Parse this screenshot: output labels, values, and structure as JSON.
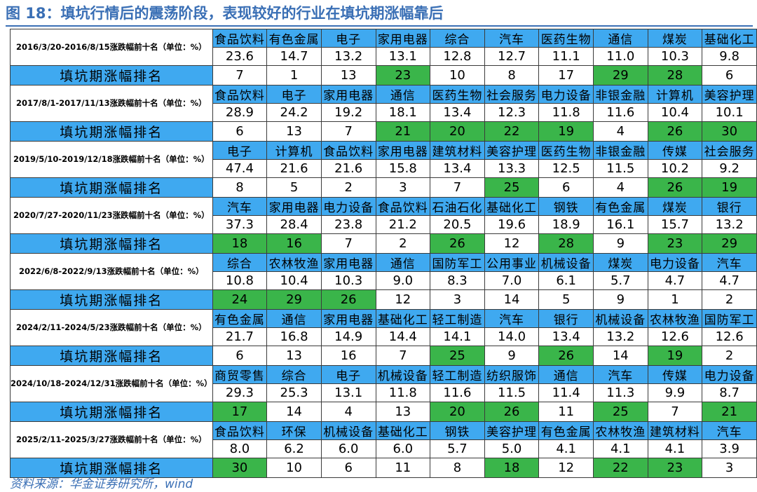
{
  "title": "图 18：填坑行情后的震荡阶段，表现较好的行业在填坑期涨幅靠后",
  "rank_label": "填坑期涨幅排名",
  "source": "资料来源：华金证券研究所，wind",
  "colors": {
    "header_blue": "#3fa9f0",
    "highlight_green": "#3ab54a",
    "title_blue": "#3a6fb5"
  },
  "periods": [
    {
      "label": "2016/3/20-2016/8/15涨跌幅前十名（单位：%）",
      "industries": [
        "食品饮料",
        "有色金属",
        "电子",
        "家用电器",
        "综合",
        "汽车",
        "医药生物",
        "通信",
        "煤炭",
        "基础化工"
      ],
      "values": [
        "23.6",
        "14.7",
        "13.2",
        "13.1",
        "12.8",
        "12.7",
        "11.1",
        "11.0",
        "10.3",
        "9.8"
      ],
      "ranks": [
        {
          "v": "7",
          "hi": false
        },
        {
          "v": "1",
          "hi": false
        },
        {
          "v": "13",
          "hi": false
        },
        {
          "v": "23",
          "hi": true
        },
        {
          "v": "10",
          "hi": false
        },
        {
          "v": "8",
          "hi": false
        },
        {
          "v": "17",
          "hi": false
        },
        {
          "v": "29",
          "hi": true
        },
        {
          "v": "28",
          "hi": true
        },
        {
          "v": "6",
          "hi": false
        }
      ]
    },
    {
      "label": "2017/8/1-2017/11/13涨跌幅前十名（单位：%）",
      "industries": [
        "食品饮料",
        "电子",
        "家用电器",
        "通信",
        "医药生物",
        "社会服务",
        "电力设备",
        "非银金融",
        "计算机",
        "美容护理"
      ],
      "values": [
        "28.9",
        "24.2",
        "19.2",
        "18.1",
        "13.4",
        "12.3",
        "11.8",
        "11.6",
        "10.4",
        "10.1"
      ],
      "ranks": [
        {
          "v": "6",
          "hi": false
        },
        {
          "v": "13",
          "hi": false
        },
        {
          "v": "7",
          "hi": false
        },
        {
          "v": "21",
          "hi": true
        },
        {
          "v": "20",
          "hi": true
        },
        {
          "v": "22",
          "hi": true
        },
        {
          "v": "19",
          "hi": true
        },
        {
          "v": "4",
          "hi": false
        },
        {
          "v": "26",
          "hi": true
        },
        {
          "v": "30",
          "hi": true
        }
      ]
    },
    {
      "label": "2019/5/10-2019/12/18涨跌幅前十名（单位：%）",
      "industries": [
        "电子",
        "计算机",
        "食品饮料",
        "家用电器",
        "建筑材料",
        "美容护理",
        "医药生物",
        "非银金融",
        "传媒",
        "社会服务"
      ],
      "values": [
        "47.4",
        "21.6",
        "21.6",
        "15.8",
        "13.4",
        "13.3",
        "12.5",
        "11.5",
        "10.2",
        "9.2"
      ],
      "ranks": [
        {
          "v": "8",
          "hi": false
        },
        {
          "v": "5",
          "hi": false
        },
        {
          "v": "2",
          "hi": false
        },
        {
          "v": "3",
          "hi": false
        },
        {
          "v": "7",
          "hi": false
        },
        {
          "v": "25",
          "hi": true
        },
        {
          "v": "6",
          "hi": false
        },
        {
          "v": "4",
          "hi": false
        },
        {
          "v": "26",
          "hi": true
        },
        {
          "v": "19",
          "hi": true
        }
      ]
    },
    {
      "label": "2020/7/27-2020/11/23涨跌幅前十名（单位：%）",
      "industries": [
        "汽车",
        "家用电器",
        "电力设备",
        "食品饮料",
        "石油石化",
        "基础化工",
        "钢铁",
        "有色金属",
        "煤炭",
        "银行"
      ],
      "values": [
        "37.3",
        "28.4",
        "23.8",
        "21.2",
        "20.5",
        "19.6",
        "18.9",
        "16.1",
        "15.7",
        "13.2"
      ],
      "ranks": [
        {
          "v": "18",
          "hi": true
        },
        {
          "v": "16",
          "hi": true
        },
        {
          "v": "7",
          "hi": false
        },
        {
          "v": "2",
          "hi": false
        },
        {
          "v": "26",
          "hi": true
        },
        {
          "v": "12",
          "hi": false
        },
        {
          "v": "28",
          "hi": true
        },
        {
          "v": "9",
          "hi": false
        },
        {
          "v": "23",
          "hi": true
        },
        {
          "v": "29",
          "hi": true
        }
      ]
    },
    {
      "label": "2022/6/8-2022/9/13涨跌幅前十名（单位：%）",
      "industries": [
        "综合",
        "农林牧渔",
        "家用电器",
        "通信",
        "国防军工",
        "公用事业",
        "机械设备",
        "煤炭",
        "电力设备",
        "汽车"
      ],
      "values": [
        "10.8",
        "10.4",
        "10.3",
        "9.0",
        "8.3",
        "7.0",
        "6.1",
        "5.7",
        "4.7",
        "4.7"
      ],
      "ranks": [
        {
          "v": "24",
          "hi": true
        },
        {
          "v": "29",
          "hi": true
        },
        {
          "v": "26",
          "hi": true
        },
        {
          "v": "12",
          "hi": false
        },
        {
          "v": "3",
          "hi": false
        },
        {
          "v": "14",
          "hi": false
        },
        {
          "v": "5",
          "hi": false
        },
        {
          "v": "9",
          "hi": false
        },
        {
          "v": "1",
          "hi": false
        },
        {
          "v": "2",
          "hi": false
        }
      ]
    },
    {
      "label": "2024/2/11-2024/5/23涨跌幅前十名（单位：%）",
      "industries": [
        "有色金属",
        "通信",
        "家用电器",
        "基础化工",
        "轻工制造",
        "汽车",
        "银行",
        "机械设备",
        "农林牧渔",
        "国防军工"
      ],
      "values": [
        "21.7",
        "16.8",
        "14.9",
        "14.4",
        "14.1",
        "14.0",
        "13.4",
        "13.2",
        "12.6",
        "12.6"
      ],
      "ranks": [
        {
          "v": "6",
          "hi": false
        },
        {
          "v": "13",
          "hi": false
        },
        {
          "v": "16",
          "hi": false
        },
        {
          "v": "7",
          "hi": false
        },
        {
          "v": "25",
          "hi": true
        },
        {
          "v": "9",
          "hi": false
        },
        {
          "v": "26",
          "hi": true
        },
        {
          "v": "14",
          "hi": false
        },
        {
          "v": "19",
          "hi": true
        },
        {
          "v": "2",
          "hi": false
        }
      ]
    },
    {
      "label": "2024/10/18-2024/12/31涨跌幅前十名（单位：%）",
      "industries": [
        "商贸零售",
        "综合",
        "电子",
        "机械设备",
        "轻工制造",
        "纺织服饰",
        "通信",
        "汽车",
        "传媒",
        "电力设备"
      ],
      "values": [
        "29.3",
        "25.3",
        "13.1",
        "11.8",
        "11.6",
        "11.5",
        "11.4",
        "11.3",
        "9.9",
        "8.7"
      ],
      "ranks": [
        {
          "v": "17",
          "hi": true
        },
        {
          "v": "14",
          "hi": false
        },
        {
          "v": "4",
          "hi": false
        },
        {
          "v": "13",
          "hi": false
        },
        {
          "v": "20",
          "hi": true
        },
        {
          "v": "26",
          "hi": true
        },
        {
          "v": "11",
          "hi": false
        },
        {
          "v": "25",
          "hi": true
        },
        {
          "v": "7",
          "hi": false
        },
        {
          "v": "21",
          "hi": true
        }
      ]
    },
    {
      "label": "2025/2/11-2025/3/27涨跌幅前十名（单位：%）",
      "industries": [
        "食品饮料",
        "环保",
        "机械设备",
        "基础化工",
        "钢铁",
        "美容护理",
        "有色金属",
        "农林牧渔",
        "建筑材料",
        "汽车"
      ],
      "values": [
        "8.0",
        "6.2",
        "6.0",
        "6.0",
        "5.7",
        "5.0",
        "4.1",
        "4.1",
        "4.1",
        "3.9"
      ],
      "ranks": [
        {
          "v": "30",
          "hi": true
        },
        {
          "v": "10",
          "hi": false
        },
        {
          "v": "6",
          "hi": false
        },
        {
          "v": "11",
          "hi": false
        },
        {
          "v": "8",
          "hi": false
        },
        {
          "v": "18",
          "hi": true
        },
        {
          "v": "12",
          "hi": false
        },
        {
          "v": "22",
          "hi": true
        },
        {
          "v": "23",
          "hi": true
        },
        {
          "v": "3",
          "hi": false
        }
      ]
    }
  ]
}
